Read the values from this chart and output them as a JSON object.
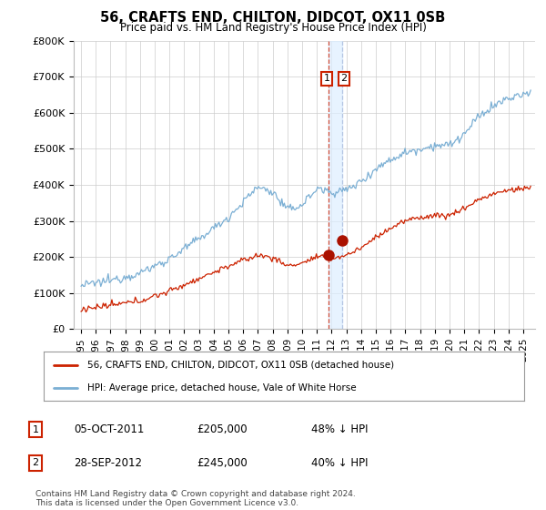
{
  "title": "56, CRAFTS END, CHILTON, DIDCOT, OX11 0SB",
  "subtitle": "Price paid vs. HM Land Registry's House Price Index (HPI)",
  "ylim": [
    0,
    800000
  ],
  "yticks": [
    0,
    100000,
    200000,
    300000,
    400000,
    500000,
    600000,
    700000,
    800000
  ],
  "ytick_labels": [
    "£0",
    "£100K",
    "£200K",
    "£300K",
    "£400K",
    "£500K",
    "£600K",
    "£700K",
    "£800K"
  ],
  "hpi_color": "#7bafd4",
  "price_color": "#cc2200",
  "marker_color": "#aa1100",
  "vline1_color": "#cc2200",
  "vline2_color": "#aabbdd",
  "shade_color": "#ddeeff",
  "background_color": "#ffffff",
  "grid_color": "#cccccc",
  "xlim_left": 1994.5,
  "xlim_right": 2025.8,
  "trans1_x": 2011.76,
  "trans1_y": 205000,
  "trans2_x": 2012.74,
  "trans2_y": 245000,
  "legend_line1": "56, CRAFTS END, CHILTON, DIDCOT, OX11 0SB (detached house)",
  "legend_line2": "HPI: Average price, detached house, Vale of White Horse",
  "copyright": "Contains HM Land Registry data © Crown copyright and database right 2024.\nThis data is licensed under the Open Government Licence v3.0.",
  "transaction_rows": [
    {
      "num": "1",
      "date": "05-OCT-2011",
      "price": "£205,000",
      "pct": "48% ↓ HPI"
    },
    {
      "num": "2",
      "date": "28-SEP-2012",
      "price": "£245,000",
      "pct": "40% ↓ HPI"
    }
  ]
}
